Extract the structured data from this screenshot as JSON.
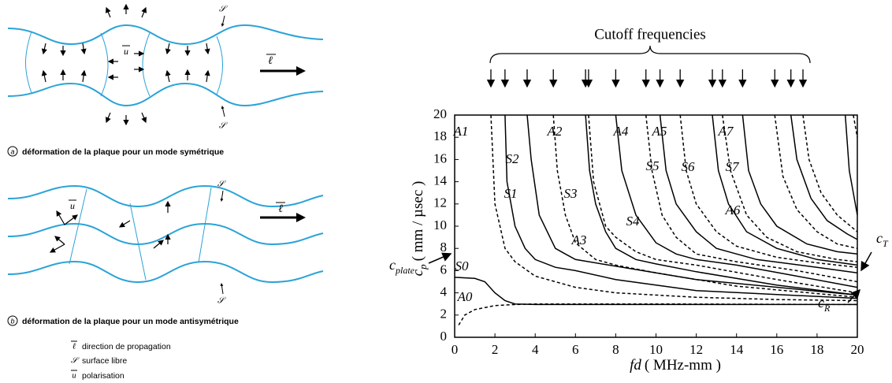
{
  "diagrams": {
    "a": {
      "label": "a",
      "caption": "déformation de la plaque pour un mode symétrique"
    },
    "b": {
      "label": "b",
      "caption": "déformation de la plaque pour un mode antisymétrique"
    },
    "symbols": {
      "propagation": "ℓ",
      "surface": "𝒮",
      "polarisation": "u"
    },
    "legend": [
      {
        "symbol": "ℓ",
        "text": "direction de propagation"
      },
      {
        "symbol": "𝒮",
        "text": "surface libre"
      },
      {
        "symbol": "u",
        "text": "polarisation"
      }
    ]
  },
  "chart_data": {
    "type": "line",
    "title": "Cutoff frequencies",
    "xlabel": {
      "symbol": "fd",
      "unit": "( MHz-mm )"
    },
    "ylabel": {
      "symbol": "c",
      "subscript": "p",
      "unit": "( mm / µsec )"
    },
    "annotations": {
      "plate": {
        "symbol": "c",
        "subscript": "plate"
      },
      "T": {
        "symbol": "c",
        "subscript": "T"
      },
      "R": {
        "symbol": "c",
        "subscript": "R"
      }
    },
    "xlim": [
      0,
      20
    ],
    "ylim": [
      0,
      20
    ],
    "xticks": [
      0,
      2,
      4,
      6,
      8,
      10,
      12,
      14,
      16,
      18,
      20
    ],
    "yticks": [
      0,
      2,
      4,
      6,
      8,
      10,
      12,
      14,
      16,
      18,
      20
    ],
    "color": "#000000",
    "cutoff_frequencies": [
      1.8,
      2.5,
      3.6,
      4.9,
      6.5,
      6.65,
      8.0,
      9.5,
      10.2,
      11.2,
      12.8,
      13.3,
      14.3,
      15.9,
      16.7,
      17.3
    ],
    "series": [
      {
        "name": "A0",
        "line_style": "dashed",
        "x": [
          0.2,
          0.5,
          1,
          2,
          3,
          4,
          6,
          10,
          20
        ],
        "values": [
          1.1,
          2.0,
          2.5,
          2.85,
          2.95,
          3.0,
          3.0,
          3.0,
          2.95
        ]
      },
      {
        "name": "S0",
        "line_style": "solid",
        "x": [
          0,
          1,
          1.5,
          2,
          2.5,
          3,
          4,
          6,
          10,
          20
        ],
        "values": [
          5.4,
          5.3,
          5.0,
          4.0,
          3.3,
          3.0,
          2.95,
          2.95,
          2.95,
          2.95
        ]
      },
      {
        "name": "A1",
        "line_style": "dashed",
        "x": [
          1.8,
          2,
          2.5,
          3,
          4,
          6,
          8,
          12,
          16,
          20
        ],
        "values": [
          20,
          12,
          8,
          6.8,
          5.5,
          4.5,
          4,
          3.6,
          3.4,
          3.3
        ]
      },
      {
        "name": "S1",
        "line_style": "solid",
        "x": [
          2.5,
          2.6,
          3,
          3.5,
          4,
          5,
          6,
          8,
          12,
          20
        ],
        "values": [
          20,
          14,
          10,
          8,
          7,
          6.3,
          6,
          5.2,
          4.2,
          3.5
        ]
      },
      {
        "name": "S2",
        "line_style": "solid",
        "x": [
          3.6,
          3.8,
          4.2,
          5,
          5.5,
          6,
          8,
          12,
          20
        ],
        "values": [
          20,
          16,
          11,
          8,
          7.5,
          7,
          6.4,
          5.2,
          3.8
        ]
      },
      {
        "name": "A2",
        "line_style": "dashed",
        "x": [
          4.9,
          5.1,
          5.5,
          6,
          7,
          8,
          10,
          14,
          20
        ],
        "values": [
          20,
          15,
          11,
          8.5,
          7,
          6.5,
          5.8,
          4.6,
          3.6
        ]
      },
      {
        "name": "S3",
        "line_style": "solid",
        "x": [
          6.5,
          6.7,
          7,
          7.5,
          8,
          9,
          10,
          12,
          16,
          20
        ],
        "values": [
          20,
          15,
          12,
          9.5,
          8,
          7,
          6.6,
          5.9,
          4.7,
          3.8
        ]
      },
      {
        "name": "A3",
        "line_style": "dashed",
        "x": [
          6.65,
          6.9,
          7.5,
          8,
          9,
          10,
          12,
          16,
          20
        ],
        "values": [
          20,
          14,
          10,
          9,
          7.7,
          7,
          6.5,
          5.2,
          4
        ]
      },
      {
        "name": "S4",
        "line_style": "solid",
        "x": [
          8,
          8.3,
          9,
          10,
          11,
          12,
          14,
          17,
          20
        ],
        "values": [
          20,
          15,
          11,
          8.5,
          7.5,
          7,
          6.5,
          5.5,
          4.5
        ]
      },
      {
        "name": "A4",
        "line_style": "dashed",
        "x": [
          9.5,
          9.8,
          10.3,
          11,
          12,
          14,
          17,
          20
        ],
        "values": [
          20,
          15,
          11,
          9,
          7.5,
          6.8,
          6,
          5
        ]
      },
      {
        "name": "S5",
        "line_style": "solid",
        "x": [
          10.2,
          10.5,
          11,
          12,
          13,
          15,
          18,
          20
        ],
        "values": [
          20,
          15,
          12,
          9.5,
          8,
          7,
          6.3,
          5.8
        ]
      },
      {
        "name": "A5",
        "line_style": "dashed",
        "x": [
          11.2,
          11.5,
          12,
          13,
          14,
          16,
          18,
          20
        ],
        "values": [
          20,
          15,
          12,
          9.5,
          8.2,
          7.2,
          6.7,
          6.3
        ]
      },
      {
        "name": "S6",
        "line_style": "solid",
        "x": [
          12.8,
          13.1,
          13.6,
          14.5,
          16,
          18,
          20
        ],
        "values": [
          20,
          15,
          12,
          9.5,
          8,
          7,
          6.5
        ]
      },
      {
        "name": "A6",
        "line_style": "dashed",
        "x": [
          13.3,
          13.7,
          14.5,
          15.5,
          17,
          19,
          20
        ],
        "values": [
          20,
          15,
          11,
          9,
          7.7,
          7,
          6.8
        ]
      },
      {
        "name": "S7",
        "line_style": "solid",
        "x": [
          14.3,
          14.6,
          15.2,
          16,
          17.5,
          19,
          20
        ],
        "values": [
          20,
          15,
          12,
          10,
          8.4,
          7.7,
          7.5
        ]
      },
      {
        "name": "A7",
        "line_style": "dashed",
        "x": [
          15.9,
          16.3,
          17,
          18,
          19,
          20
        ],
        "values": [
          20,
          14.5,
          11.5,
          9.5,
          8.4,
          8
        ]
      },
      {
        "line_style": "solid",
        "x": [
          16.7,
          17,
          17.7,
          18.5,
          19.5,
          20
        ],
        "values": [
          20,
          16,
          12.5,
          10.5,
          9.3,
          8.8
        ]
      },
      {
        "line_style": "dashed",
        "x": [
          17.3,
          17.6,
          18.2,
          19,
          20
        ],
        "values": [
          20,
          16,
          13,
          11,
          9.5
        ]
      },
      {
        "line_style": "solid",
        "x": [
          19.4,
          19.6,
          20
        ],
        "values": [
          20,
          15,
          11
        ]
      },
      {
        "line_style": "dashed",
        "x": [
          19.8,
          20
        ],
        "values": [
          20,
          18
        ]
      }
    ]
  }
}
